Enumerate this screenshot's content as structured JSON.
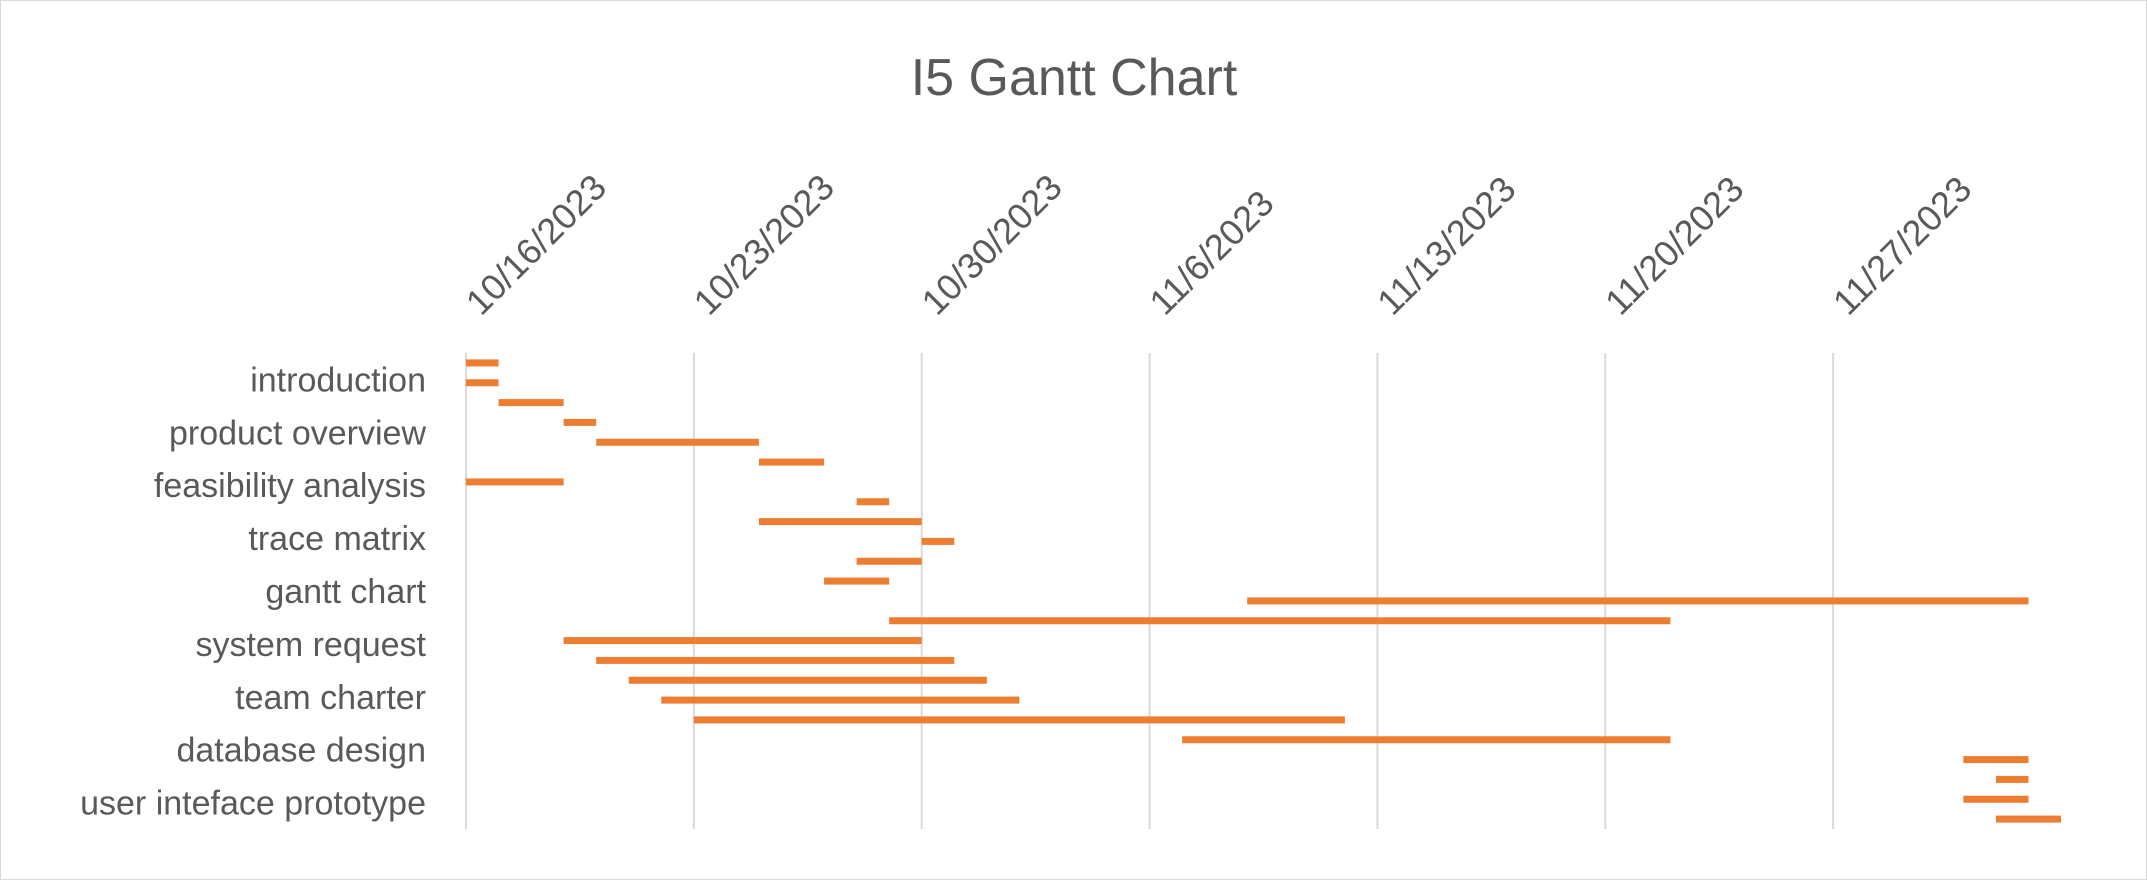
{
  "chart_data": {
    "type": "bar",
    "orientation": "horizontal-gantt",
    "title": "I5 Gantt Chart",
    "xlabel": "",
    "ylabel": "",
    "x_axis_position": "top",
    "x_tick_labels": [
      "10/16/2023",
      "10/23/2023",
      "10/30/2023",
      "11/6/2023",
      "11/13/2023",
      "11/20/2023",
      "11/27/2023"
    ],
    "x_ticks": [
      "2023-10-16",
      "2023-10-23",
      "2023-10-30",
      "2023-11-06",
      "2023-11-13",
      "2023-11-20",
      "2023-11-27"
    ],
    "xlim": [
      "2023-10-16",
      "2023-12-04"
    ],
    "grid": "vertical",
    "legend": "none",
    "bar_color": "#ed7d31",
    "category_labels": [
      "introduction",
      "product overview",
      "feasibility analysis",
      "trace matrix",
      "gantt chart",
      "system request",
      "team charter",
      "database design",
      "user inteface prototype"
    ],
    "tasks": [
      {
        "start": "2023-10-16",
        "end": "2023-10-17"
      },
      {
        "start": "2023-10-16",
        "end": "2023-10-17"
      },
      {
        "start": "2023-10-17",
        "end": "2023-10-19"
      },
      {
        "start": "2023-10-19",
        "end": "2023-10-20"
      },
      {
        "start": "2023-10-20",
        "end": "2023-10-25"
      },
      {
        "start": "2023-10-25",
        "end": "2023-10-27"
      },
      {
        "start": "2023-10-16",
        "end": "2023-10-19"
      },
      {
        "start": "2023-10-28",
        "end": "2023-10-29"
      },
      {
        "start": "2023-10-25",
        "end": "2023-10-30"
      },
      {
        "start": "2023-10-30",
        "end": "2023-10-31"
      },
      {
        "start": "2023-10-28",
        "end": "2023-10-30"
      },
      {
        "start": "2023-10-27",
        "end": "2023-10-29"
      },
      {
        "start": "2023-11-09",
        "end": "2023-12-03"
      },
      {
        "start": "2023-10-29",
        "end": "2023-11-22"
      },
      {
        "start": "2023-10-19",
        "end": "2023-10-30"
      },
      {
        "start": "2023-10-20",
        "end": "2023-10-31"
      },
      {
        "start": "2023-10-21",
        "end": "2023-11-01"
      },
      {
        "start": "2023-10-22",
        "end": "2023-11-02"
      },
      {
        "start": "2023-10-23",
        "end": "2023-11-12"
      },
      {
        "start": "2023-11-07",
        "end": "2023-11-22"
      },
      {
        "start": "2023-12-01",
        "end": "2023-12-03"
      },
      {
        "start": "2023-12-02",
        "end": "2023-12-03"
      },
      {
        "start": "2023-12-01",
        "end": "2023-12-03"
      },
      {
        "start": "2023-12-02",
        "end": "2023-12-04"
      }
    ]
  }
}
